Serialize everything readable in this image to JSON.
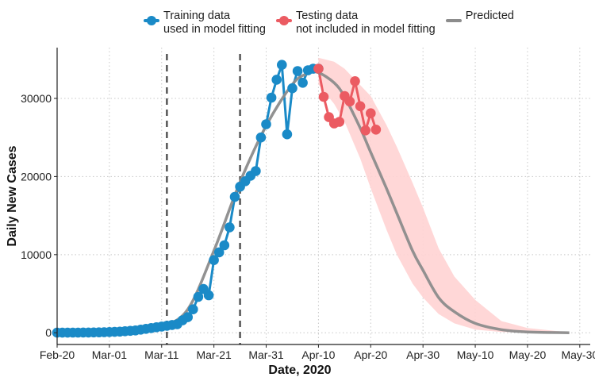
{
  "legend": {
    "training": {
      "line1": "Training data",
      "line2": "used in model fitting",
      "color": "#1a8ac7"
    },
    "testing": {
      "line1": "Testing data",
      "line2": "not included in model fitting",
      "color": "#eb5b62"
    },
    "predicted": {
      "label": "Predicted",
      "color": "#8c8c8c"
    }
  },
  "chart_data": {
    "type": "line",
    "xlabel": "Date, 2020",
    "ylabel": "Daily New Cases",
    "xlim": [
      "2020-02-20",
      "2020-06-01"
    ],
    "ylim": [
      -1500,
      36500
    ],
    "x_ticks": [
      "2020-02-20",
      "2020-03-01",
      "2020-03-11",
      "2020-03-21",
      "2020-03-31",
      "2020-04-10",
      "2020-04-20",
      "2020-04-30",
      "2020-05-10",
      "2020-05-20",
      "2020-05-30"
    ],
    "x_tick_labels": [
      "Feb-20",
      "Mar-01",
      "Mar-11",
      "Mar-21",
      "Mar-31",
      "Apr-10",
      "Apr-20",
      "Apr-30",
      "May-10",
      "May-20",
      "May-30"
    ],
    "y_ticks": [
      0,
      10000,
      20000,
      30000
    ],
    "y_tick_labels": [
      "0",
      "10000",
      "20000",
      "30000"
    ],
    "grid": true,
    "legend_position": "top",
    "vlines": [
      "2020-03-12",
      "2020-03-26"
    ],
    "series": [
      {
        "name": "Training data used in model fitting",
        "kind": "points-line",
        "color": "#1a8ac7",
        "x": [
          "2020-02-20",
          "2020-02-21",
          "2020-02-22",
          "2020-02-23",
          "2020-02-24",
          "2020-02-25",
          "2020-02-26",
          "2020-02-27",
          "2020-02-28",
          "2020-02-29",
          "2020-03-01",
          "2020-03-02",
          "2020-03-03",
          "2020-03-04",
          "2020-03-05",
          "2020-03-06",
          "2020-03-07",
          "2020-03-08",
          "2020-03-09",
          "2020-03-10",
          "2020-03-11",
          "2020-03-12",
          "2020-03-13",
          "2020-03-14",
          "2020-03-15",
          "2020-03-16",
          "2020-03-17",
          "2020-03-18",
          "2020-03-19",
          "2020-03-20",
          "2020-03-21",
          "2020-03-22",
          "2020-03-23",
          "2020-03-24",
          "2020-03-25",
          "2020-03-26",
          "2020-03-27",
          "2020-03-28",
          "2020-03-29",
          "2020-03-30",
          "2020-03-31",
          "2020-04-01",
          "2020-04-02",
          "2020-04-03",
          "2020-04-04",
          "2020-04-05",
          "2020-04-06",
          "2020-04-07",
          "2020-04-08",
          "2020-04-09",
          "2020-04-10"
        ],
        "y": [
          15,
          15,
          10,
          20,
          25,
          30,
          35,
          40,
          50,
          70,
          100,
          120,
          150,
          200,
          250,
          300,
          400,
          500,
          600,
          700,
          800,
          900,
          1000,
          1100,
          1600,
          2000,
          3000,
          4600,
          5600,
          4800,
          9300,
          10300,
          11200,
          13500,
          17400,
          18700,
          19400,
          20100,
          20700,
          25000,
          26700,
          30100,
          32400,
          34300,
          25400,
          31300,
          33500,
          32000,
          33600,
          33800,
          33800
        ]
      },
      {
        "name": "Testing data not included in model fitting",
        "kind": "points-line",
        "color": "#eb5b62",
        "x": [
          "2020-04-10",
          "2020-04-11",
          "2020-04-12",
          "2020-04-13",
          "2020-04-14",
          "2020-04-15",
          "2020-04-16",
          "2020-04-17",
          "2020-04-18",
          "2020-04-19",
          "2020-04-20",
          "2020-04-21"
        ],
        "y": [
          33800,
          30200,
          27600,
          26800,
          27000,
          30300,
          29600,
          32200,
          29000,
          25900,
          28100,
          26000
        ]
      },
      {
        "name": "Predicted",
        "kind": "line",
        "color": "#8c8c8c",
        "x": [
          "2020-02-20",
          "2020-03-01",
          "2020-03-06",
          "2020-03-11",
          "2020-03-16",
          "2020-03-21",
          "2020-03-26",
          "2020-03-31",
          "2020-04-05",
          "2020-04-08",
          "2020-04-10",
          "2020-04-13",
          "2020-04-15",
          "2020-04-18",
          "2020-04-20",
          "2020-04-23",
          "2020-04-25",
          "2020-04-28",
          "2020-04-30",
          "2020-05-03",
          "2020-05-06",
          "2020-05-10",
          "2020-05-15",
          "2020-05-20",
          "2020-05-28"
        ],
        "y": [
          0,
          100,
          250,
          800,
          3000,
          10500,
          19300,
          26500,
          31800,
          33200,
          33300,
          32000,
          30200,
          26200,
          23100,
          18500,
          15300,
          10500,
          8000,
          4500,
          2700,
          1200,
          400,
          100,
          0
        ]
      },
      {
        "name": "Prediction interval",
        "kind": "band",
        "color": "#ffd3d3",
        "x": [
          "2020-04-10",
          "2020-04-13",
          "2020-04-15",
          "2020-04-18",
          "2020-04-20",
          "2020-04-23",
          "2020-04-25",
          "2020-04-28",
          "2020-04-30",
          "2020-05-03",
          "2020-05-06",
          "2020-05-10",
          "2020-05-15",
          "2020-05-20",
          "2020-05-28"
        ],
        "upper": [
          35200,
          34700,
          33800,
          31700,
          30300,
          26600,
          23800,
          19200,
          16000,
          10800,
          7200,
          4200,
          1500,
          600,
          50
        ],
        "lower": [
          31800,
          29300,
          27000,
          22300,
          18500,
          13200,
          10000,
          6300,
          4500,
          2400,
          1200,
          400,
          100,
          20,
          0
        ]
      }
    ]
  }
}
